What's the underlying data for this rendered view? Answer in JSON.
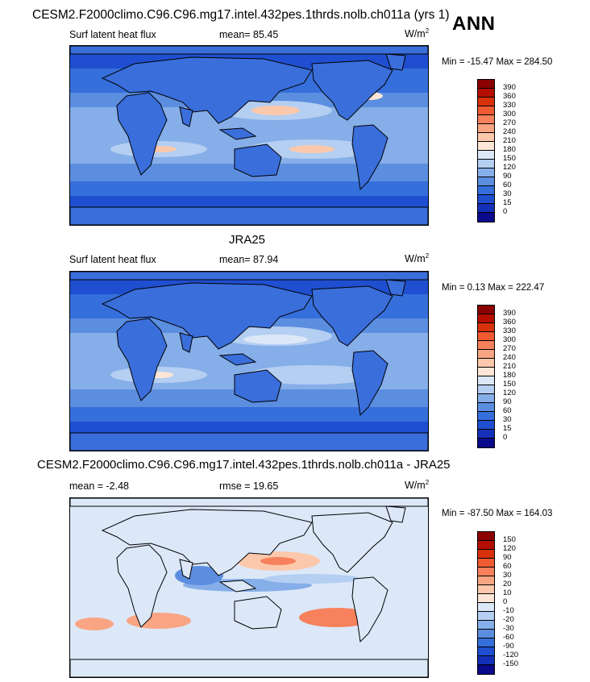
{
  "header": {
    "case_title": "CESM2.F2000climo.C96.C96.mg17.intel.432pes.1thrds.nolb.ch011a (yrs 1)",
    "season": "ANN"
  },
  "panels": [
    {
      "id": "model",
      "title": "",
      "left_label": "Surf latent heat flux",
      "middle_label": "mean=  85.45",
      "units_base": "W/m",
      "units_exp": "2",
      "minmax": "Min = -15.47 Max = 284.50",
      "levels": [
        "390",
        "360",
        "330",
        "300",
        "270",
        "240",
        "210",
        "180",
        "150",
        "120",
        "90",
        "60",
        "30",
        "15",
        "0"
      ],
      "colors": [
        "#8b0000",
        "#b40e00",
        "#d8320c",
        "#ef5a32",
        "#f6815c",
        "#f9a583",
        "#fcc8ab",
        "#fde6d6",
        "#dce8f8",
        "#b4cff2",
        "#86aee8",
        "#5c8ee0",
        "#356fdb",
        "#1f4fd0",
        "#1530b8",
        "#0a0a8c"
      ]
    },
    {
      "id": "obs",
      "title": "JRA25",
      "left_label": "Surf latent heat flux",
      "middle_label": "mean=  87.94",
      "units_base": "W/m",
      "units_exp": "2",
      "minmax": "Min =  0.13 Max = 222.47",
      "levels": [
        "390",
        "360",
        "330",
        "300",
        "270",
        "240",
        "210",
        "180",
        "150",
        "120",
        "90",
        "60",
        "30",
        "15",
        "0"
      ],
      "colors": [
        "#8b0000",
        "#b40e00",
        "#d8320c",
        "#ef5a32",
        "#f6815c",
        "#f9a583",
        "#fcc8ab",
        "#fde6d6",
        "#dce8f8",
        "#b4cff2",
        "#86aee8",
        "#5c8ee0",
        "#356fdb",
        "#1f4fd0",
        "#1530b8",
        "#0a0a8c"
      ]
    },
    {
      "id": "diff",
      "title": "CESM2.F2000climo.C96.C96.mg17.intel.432pes.1thrds.nolb.ch011a - JRA25",
      "left_label": "mean =  -2.48",
      "middle_label": "rmse =  19.65",
      "units_base": "W/m",
      "units_exp": "2",
      "minmax": "Min = -87.50 Max = 164.03",
      "levels": [
        "150",
        "120",
        "90",
        "60",
        "30",
        "20",
        "10",
        "0",
        "-10",
        "-20",
        "-30",
        "-60",
        "-90",
        "-120",
        "-150"
      ],
      "colors": [
        "#8b0000",
        "#b40e00",
        "#d8320c",
        "#ef5a32",
        "#f6815c",
        "#f9a583",
        "#fcc8ab",
        "#fde6d6",
        "#dce8f8",
        "#b4cff2",
        "#86aee8",
        "#5c8ee0",
        "#356fdb",
        "#1f4fd0",
        "#1530b8",
        "#0a0a8c"
      ]
    }
  ]
}
